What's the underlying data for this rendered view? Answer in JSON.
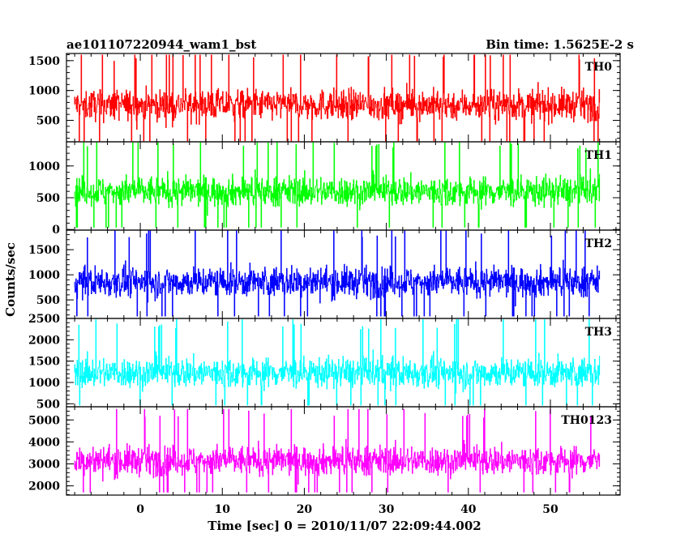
{
  "chart_data": {
    "type": "line",
    "title": "ae101107220944_wam1_bst",
    "subtitle": "Bin time: 1.5625E-2 s",
    "xlabel": "Time [sec] 0 = 2010/11/07 22:09:44.002",
    "ylabel": "Counts/sec",
    "xlim": [
      -9,
      58.5
    ],
    "x_ticks": [
      0,
      10,
      20,
      30,
      40,
      50
    ],
    "data_x_range": [
      -8,
      56
    ],
    "bin_time": 0.015625,
    "grid": false,
    "panels": [
      {
        "name": "TH0",
        "color": "#ff0000",
        "ylim": [
          140,
          1620
        ],
        "y_ticks": [
          500,
          1000,
          1500
        ],
        "noise": {
          "mean": 760,
          "min": 150,
          "max": 1600
        }
      },
      {
        "name": "TH1",
        "color": "#00ff00",
        "ylim": [
          -10,
          1380
        ],
        "y_ticks": [
          0,
          500,
          1000
        ],
        "noise": {
          "mean": 600,
          "min": 30,
          "max": 1370
        }
      },
      {
        "name": "TH2",
        "color": "#0000ff",
        "ylim": [
          130,
          1890
        ],
        "y_ticks": [
          500,
          1000,
          1500
        ],
        "noise": {
          "mean": 860,
          "min": 170,
          "max": 1880
        }
      },
      {
        "name": "TH3",
        "color": "#00ffff",
        "ylim": [
          430,
          2500
        ],
        "y_ticks": [
          500,
          1000,
          1500,
          2000,
          2500
        ],
        "noise": {
          "mean": 1230,
          "min": 460,
          "max": 2480
        }
      },
      {
        "name": "TH0123",
        "color": "#ff00ff",
        "ylim": [
          1580,
          5600
        ],
        "y_ticks": [
          2000,
          3000,
          4000,
          5000
        ],
        "noise": {
          "mean": 3150,
          "min": 1700,
          "max": 5500
        }
      }
    ]
  }
}
